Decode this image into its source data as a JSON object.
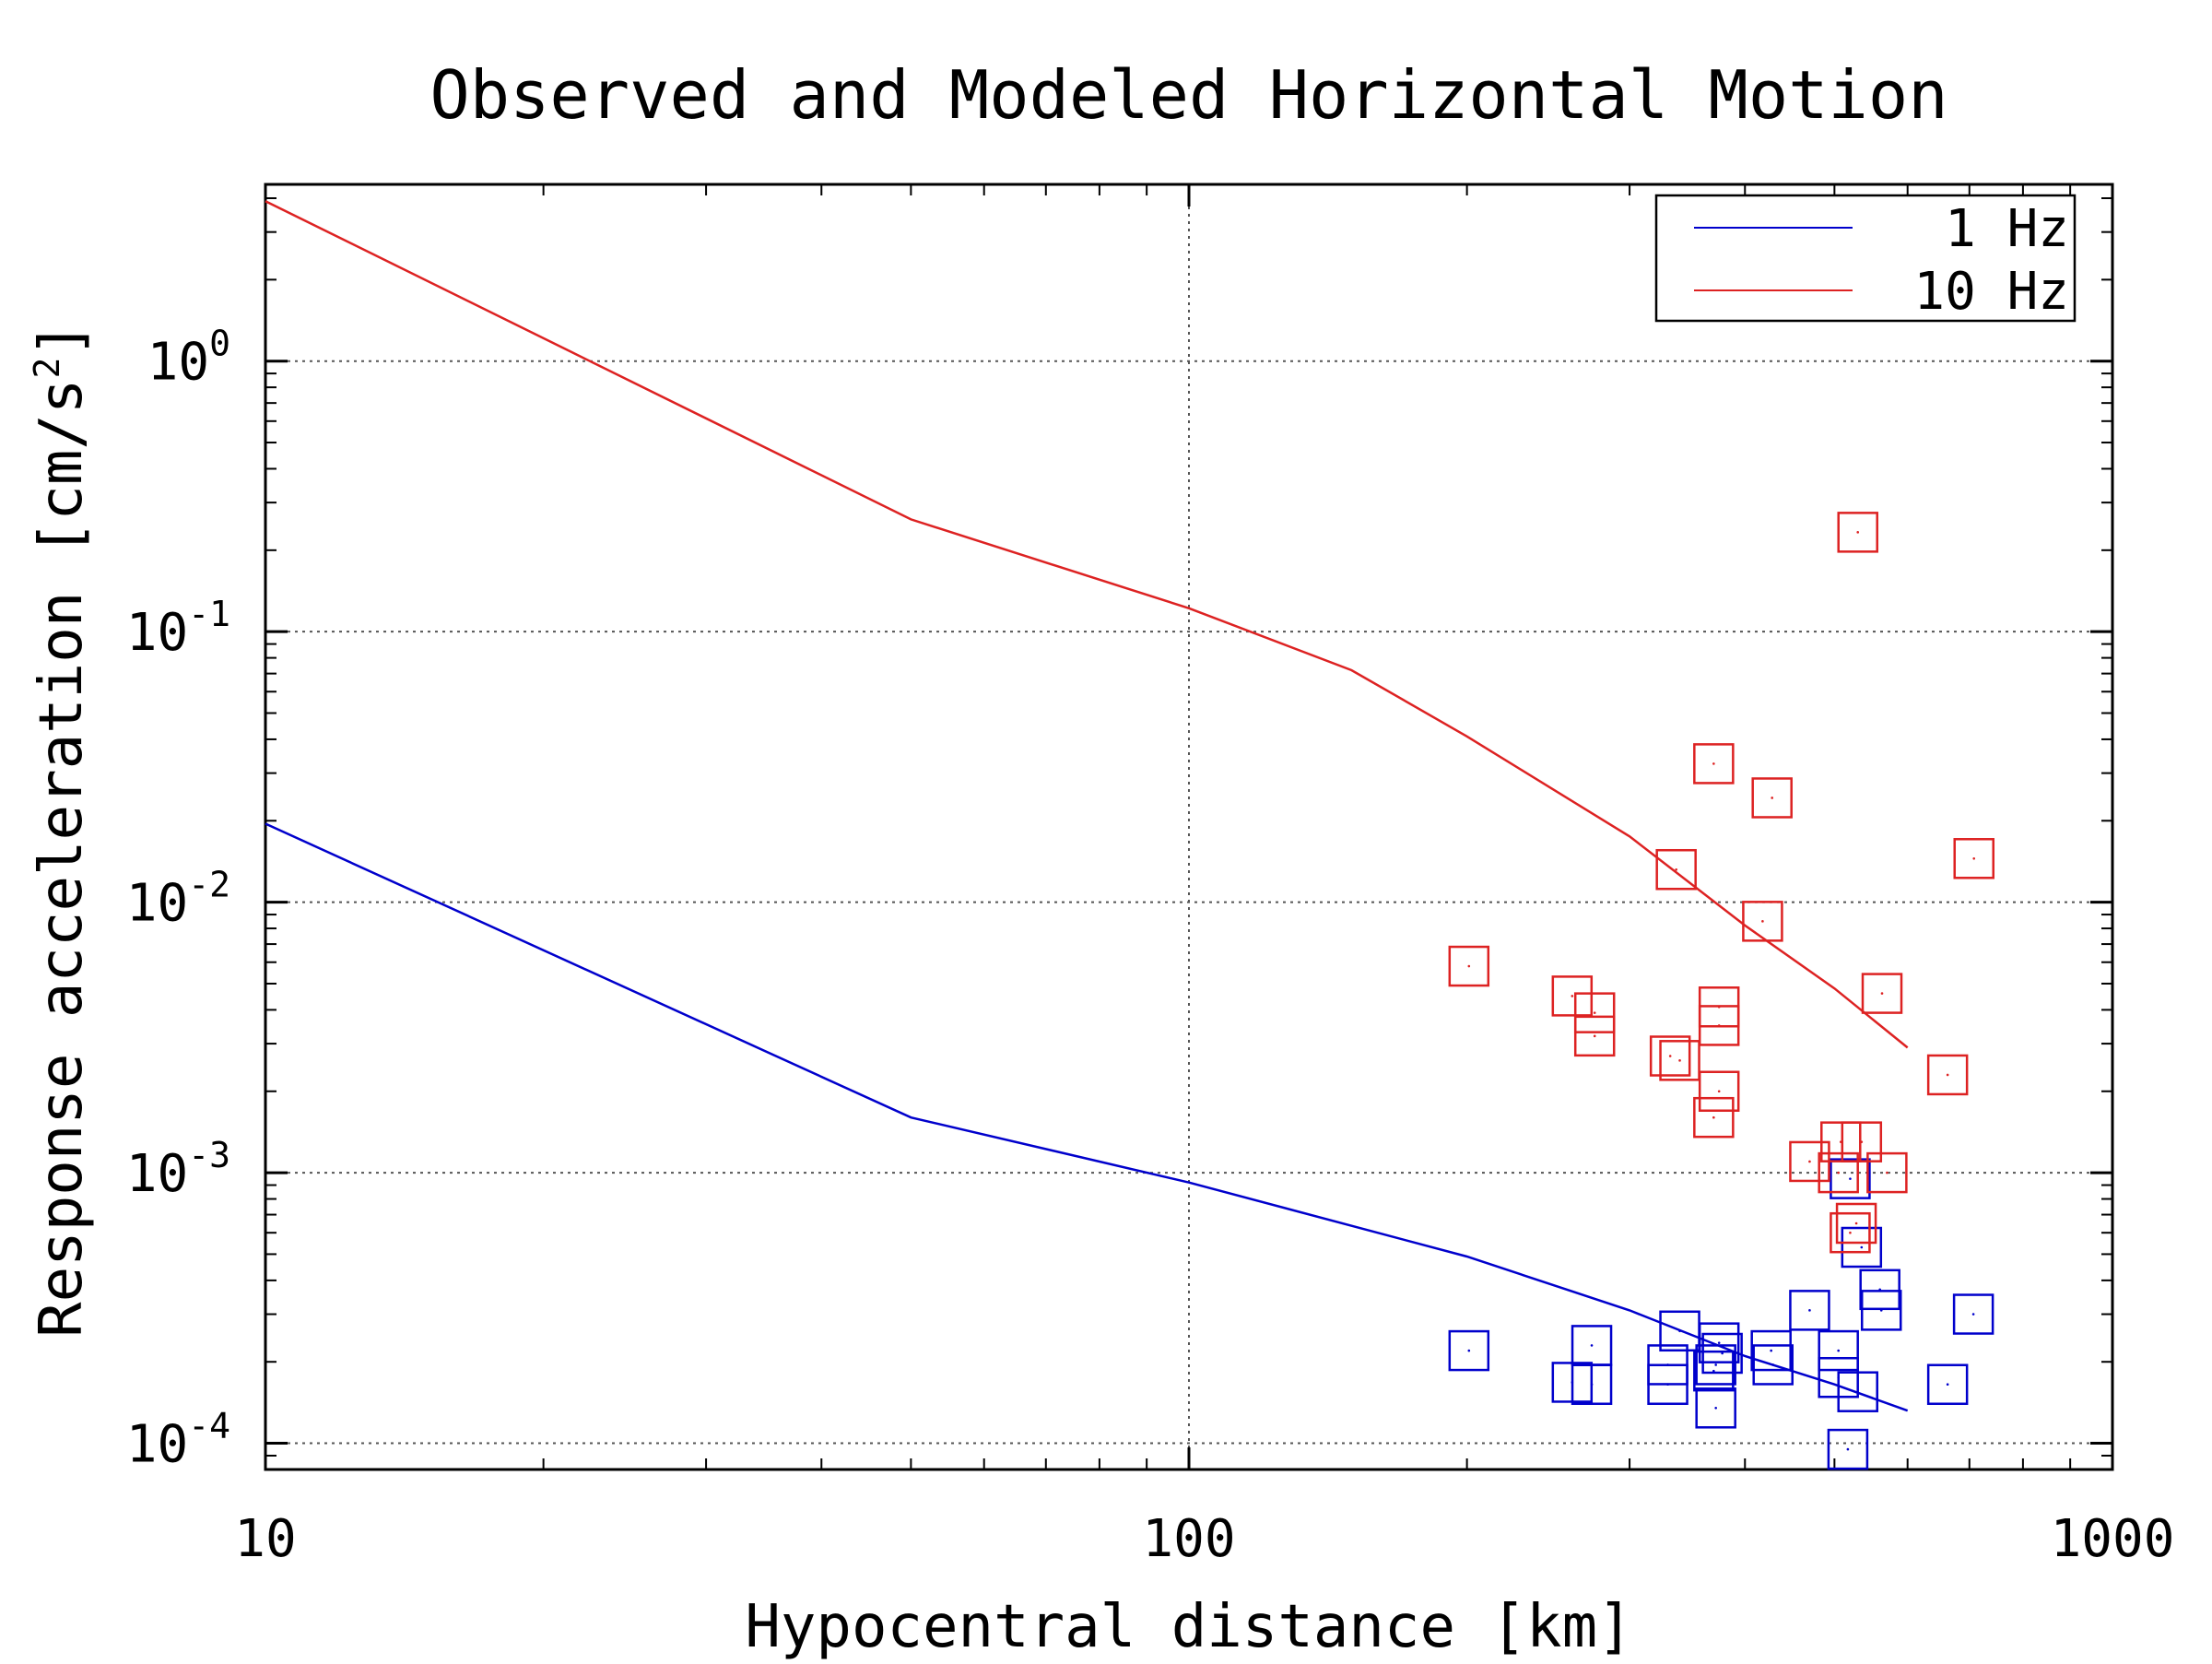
{
  "chart_data": {
    "type": "scatter",
    "title": "Observed and Modeled Horizontal Motion",
    "xlabel": "Hypocentral distance [km]",
    "ylabel": "Response acceleration [cm/s",
    "ylabel_superscript": "2",
    "ylabel_suffix": "]",
    "xscale": "log",
    "yscale": "log",
    "xlim": [
      10,
      1000
    ],
    "ylim": [
      8e-05,
      4.5
    ],
    "grid": true,
    "legend_position": "top-right",
    "x_ticks": [
      {
        "value": 10,
        "label": "10"
      },
      {
        "value": 100,
        "label": "100"
      },
      {
        "value": 1000,
        "label": "1000"
      }
    ],
    "y_ticks": [
      {
        "value": 0.0001,
        "base": "10",
        "exp": "-4"
      },
      {
        "value": 0.001,
        "base": "10",
        "exp": "-3"
      },
      {
        "value": 0.01,
        "base": "10",
        "exp": "-2"
      },
      {
        "value": 0.1,
        "base": "10",
        "exp": "-1"
      },
      {
        "value": 1,
        "base": "10",
        "exp": "0"
      }
    ],
    "series": [
      {
        "name": "1 Hz",
        "color": "#0000cc",
        "model_line": [
          [
            10,
            0.0195
          ],
          [
            50,
            0.0016
          ],
          [
            100,
            0.00092
          ],
          [
            200,
            0.00049
          ],
          [
            300,
            0.00031
          ],
          [
            400,
            0.00021
          ],
          [
            500,
            0.000165
          ],
          [
            600,
            0.000132
          ]
        ],
        "observed": [
          [
            201,
            0.00022
          ],
          [
            260,
            0.000168
          ],
          [
            273,
            0.00023
          ],
          [
            273,
            0.000165
          ],
          [
            330,
            0.000195
          ],
          [
            330,
            0.000165
          ],
          [
            340,
            0.00026
          ],
          [
            370,
            0.000185
          ],
          [
            375,
            0.000235
          ],
          [
            378,
            0.000215
          ],
          [
            372,
            0.000195
          ],
          [
            372,
            0.000135
          ],
          [
            427,
            0.00022
          ],
          [
            429,
            0.000195
          ],
          [
            470,
            0.00031
          ],
          [
            505,
            0.00022
          ],
          [
            505,
            0.000175
          ],
          [
            520,
            0.00095
          ],
          [
            535,
            0.00053
          ],
          [
            530,
            0.000155
          ],
          [
            517,
            9.5e-05
          ],
          [
            560,
            0.00037
          ],
          [
            562,
            0.00031
          ],
          [
            663,
            0.000165
          ],
          [
            707,
            0.0003
          ]
        ]
      },
      {
        "name": "10 Hz",
        "color": "#dd2222",
        "model_line": [
          [
            10,
            3.9
          ],
          [
            50,
            0.26
          ],
          [
            100,
            0.122
          ],
          [
            150,
            0.072
          ],
          [
            200,
            0.041
          ],
          [
            300,
            0.0175
          ],
          [
            400,
            0.0082
          ],
          [
            500,
            0.0048
          ],
          [
            600,
            0.0029
          ]
        ],
        "observed": [
          [
            201,
            0.0058
          ],
          [
            260,
            0.0045
          ],
          [
            275,
            0.0039
          ],
          [
            275,
            0.0032
          ],
          [
            332,
            0.0027
          ],
          [
            340,
            0.0026
          ],
          [
            337,
            0.0132
          ],
          [
            370,
            0.0325
          ],
          [
            375,
            0.0041
          ],
          [
            375,
            0.0035
          ],
          [
            375,
            0.002
          ],
          [
            370,
            0.0016
          ],
          [
            418,
            0.0085
          ],
          [
            428,
            0.0243
          ],
          [
            470,
            0.0011
          ],
          [
            508,
            0.0013
          ],
          [
            505,
            0.001
          ],
          [
            528,
            0.00065
          ],
          [
            535,
            0.0013
          ],
          [
            520,
            0.0006
          ],
          [
            563,
            0.0046
          ],
          [
            570,
            0.001
          ],
          [
            530,
            0.233
          ],
          [
            663,
            0.0023
          ],
          [
            708,
            0.0145
          ]
        ]
      }
    ]
  }
}
